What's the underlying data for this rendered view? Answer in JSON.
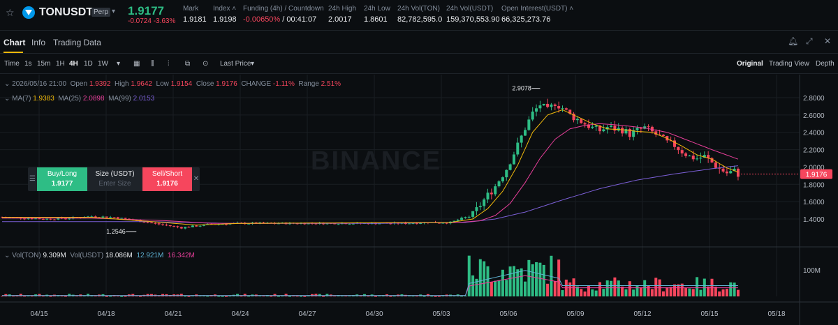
{
  "header": {
    "symbol": "TONUSDT",
    "tag": "Perp",
    "last_price": "1.9177",
    "change": "-0.0724 -3.63%",
    "stats": [
      {
        "label": "Mark",
        "value": "1.9181",
        "x": 262
      },
      {
        "label": "Index ˄",
        "value": "1.9198",
        "x": 305
      },
      {
        "label": "Funding (4h) / Countdown",
        "value_red": "-0.00650%",
        "value": " / 00:41:07",
        "x": 348
      },
      {
        "label": "24h High",
        "value": "2.0017",
        "x": 470
      },
      {
        "label": "24h Low",
        "value": "1.8601",
        "x": 521
      },
      {
        "label": "24h Vol(TON)",
        "value": "82,782,595.0",
        "x": 569
      },
      {
        "label": "24h Vol(USDT)",
        "value": "159,370,553.90",
        "x": 639
      },
      {
        "label": "Open Interest(USDT) ˄",
        "value": "66,325,273.76",
        "x": 718
      }
    ]
  },
  "tabs": [
    "Chart",
    "Info",
    "Trading Data"
  ],
  "toolbar": {
    "intervals": [
      "Time",
      "1s",
      "15m",
      "1H",
      "4H",
      "1D",
      "1W"
    ],
    "active_interval": "4H",
    "price_source": "Last Price",
    "views": [
      "Original",
      "Trading View",
      "Depth"
    ],
    "active_view": "Original"
  },
  "ohlc": {
    "date": "2026/05/16 21:00",
    "open_label": "Open",
    "open": "1.9392",
    "high_label": "High",
    "high": "1.9642",
    "low_label": "Low",
    "low": "1.9154",
    "close_label": "Close",
    "close": "1.9176",
    "change_label": "CHANGE",
    "change": "-1.11%",
    "range_label": "Range",
    "range": "2.51%"
  },
  "ma": {
    "ma7_label": "MA(7)",
    "ma7": "1.9383",
    "ma25_label": "MA(25)",
    "ma25": "2.0898",
    "ma99_label": "MA(99)",
    "ma99": "2.0153"
  },
  "volume": {
    "ton_label": "Vol(TON)",
    "ton": "9.309M",
    "usdt_label": "Vol(USDT)",
    "usdt": "18.086M",
    "ma1": "12.921M",
    "ma2": "16.342M"
  },
  "order": {
    "buy_label": "Buy/Long",
    "buy_price": "1.9177",
    "size_label": "Size (USDT)",
    "size_placeholder": "Enter Size",
    "sell_label": "Sell/Short",
    "sell_price": "1.9176"
  },
  "watermark": "BINANCE",
  "colors": {
    "up": "#2ebd85",
    "down": "#f6465d",
    "ma7": "#f0b90b",
    "ma25": "#e83f9a",
    "ma99": "#7b5fd6"
  },
  "chart_data": {
    "type": "candlestick",
    "interval": "4H",
    "y_ticks": [
      1.4,
      1.6,
      1.8,
      2.0,
      2.2,
      2.4,
      2.6,
      2.8
    ],
    "ylim": [
      1.2,
      2.9
    ],
    "x_ticks": [
      "04/15",
      "04/18",
      "04/21",
      "04/24",
      "04/27",
      "04/30",
      "05/03",
      "05/06",
      "05/09",
      "05/12",
      "05/15",
      "05/18"
    ],
    "annotations": {
      "high": "2.9078",
      "low": "1.2546",
      "current": "1.9176"
    },
    "volume_tick": "100M",
    "close_path": [
      [
        0,
        1.42
      ],
      [
        6,
        1.41
      ],
      [
        12,
        1.4
      ],
      [
        18,
        1.41
      ],
      [
        24,
        1.43
      ],
      [
        30,
        1.42
      ],
      [
        36,
        1.38
      ],
      [
        42,
        1.34
      ],
      [
        48,
        1.3
      ],
      [
        52,
        1.32
      ],
      [
        56,
        1.34
      ],
      [
        64,
        1.35
      ],
      [
        72,
        1.35
      ],
      [
        84,
        1.35
      ],
      [
        96,
        1.35
      ],
      [
        108,
        1.35
      ],
      [
        114,
        1.36
      ],
      [
        120,
        1.36
      ],
      [
        126,
        1.45
      ],
      [
        129,
        1.62
      ],
      [
        132,
        1.78
      ],
      [
        135,
        1.98
      ],
      [
        138,
        2.25
      ],
      [
        140,
        2.45
      ],
      [
        142,
        2.62
      ],
      [
        144,
        2.72
      ],
      [
        146,
        2.65
      ],
      [
        148,
        2.74
      ],
      [
        150,
        2.68
      ],
      [
        152,
        2.6
      ],
      [
        154,
        2.55
      ],
      [
        156,
        2.5
      ],
      [
        158,
        2.45
      ],
      [
        160,
        2.42
      ],
      [
        162,
        2.46
      ],
      [
        164,
        2.44
      ],
      [
        166,
        2.43
      ],
      [
        168,
        2.38
      ],
      [
        170,
        2.42
      ],
      [
        172,
        2.45
      ],
      [
        174,
        2.4
      ],
      [
        176,
        2.35
      ],
      [
        178,
        2.28
      ],
      [
        180,
        2.25
      ],
      [
        182,
        2.18
      ],
      [
        184,
        2.12
      ],
      [
        186,
        2.1
      ],
      [
        188,
        2.12
      ],
      [
        190,
        2.05
      ],
      [
        192,
        1.98
      ],
      [
        194,
        1.93
      ],
      [
        196,
        1.95
      ],
      [
        197,
        1.92
      ]
    ],
    "ma7_path": [
      [
        0,
        1.42
      ],
      [
        24,
        1.42
      ],
      [
        40,
        1.37
      ],
      [
        52,
        1.33
      ],
      [
        64,
        1.35
      ],
      [
        120,
        1.36
      ],
      [
        126,
        1.4
      ],
      [
        130,
        1.52
      ],
      [
        134,
        1.72
      ],
      [
        138,
        2.02
      ],
      [
        142,
        2.4
      ],
      [
        146,
        2.6
      ],
      [
        150,
        2.66
      ],
      [
        154,
        2.58
      ],
      [
        158,
        2.5
      ],
      [
        162,
        2.44
      ],
      [
        166,
        2.43
      ],
      [
        170,
        2.41
      ],
      [
        174,
        2.4
      ],
      [
        178,
        2.33
      ],
      [
        182,
        2.24
      ],
      [
        186,
        2.14
      ],
      [
        190,
        2.09
      ],
      [
        194,
        1.99
      ],
      [
        197,
        1.94
      ]
    ],
    "ma25_path": [
      [
        0,
        1.41
      ],
      [
        24,
        1.41
      ],
      [
        44,
        1.38
      ],
      [
        56,
        1.35
      ],
      [
        70,
        1.35
      ],
      [
        122,
        1.36
      ],
      [
        128,
        1.38
      ],
      [
        132,
        1.44
      ],
      [
        136,
        1.58
      ],
      [
        140,
        1.82
      ],
      [
        144,
        2.1
      ],
      [
        148,
        2.32
      ],
      [
        152,
        2.44
      ],
      [
        156,
        2.48
      ],
      [
        160,
        2.5
      ],
      [
        166,
        2.48
      ],
      [
        172,
        2.45
      ],
      [
        178,
        2.4
      ],
      [
        184,
        2.3
      ],
      [
        190,
        2.2
      ],
      [
        197,
        2.09
      ]
    ],
    "ma99_path": [
      [
        0,
        1.37
      ],
      [
        20,
        1.37
      ],
      [
        40,
        1.37
      ],
      [
        60,
        1.35
      ],
      [
        100,
        1.35
      ],
      [
        124,
        1.36
      ],
      [
        132,
        1.4
      ],
      [
        140,
        1.48
      ],
      [
        150,
        1.62
      ],
      [
        160,
        1.75
      ],
      [
        170,
        1.85
      ],
      [
        180,
        1.92
      ],
      [
        190,
        1.98
      ],
      [
        197,
        2.015
      ]
    ]
  }
}
